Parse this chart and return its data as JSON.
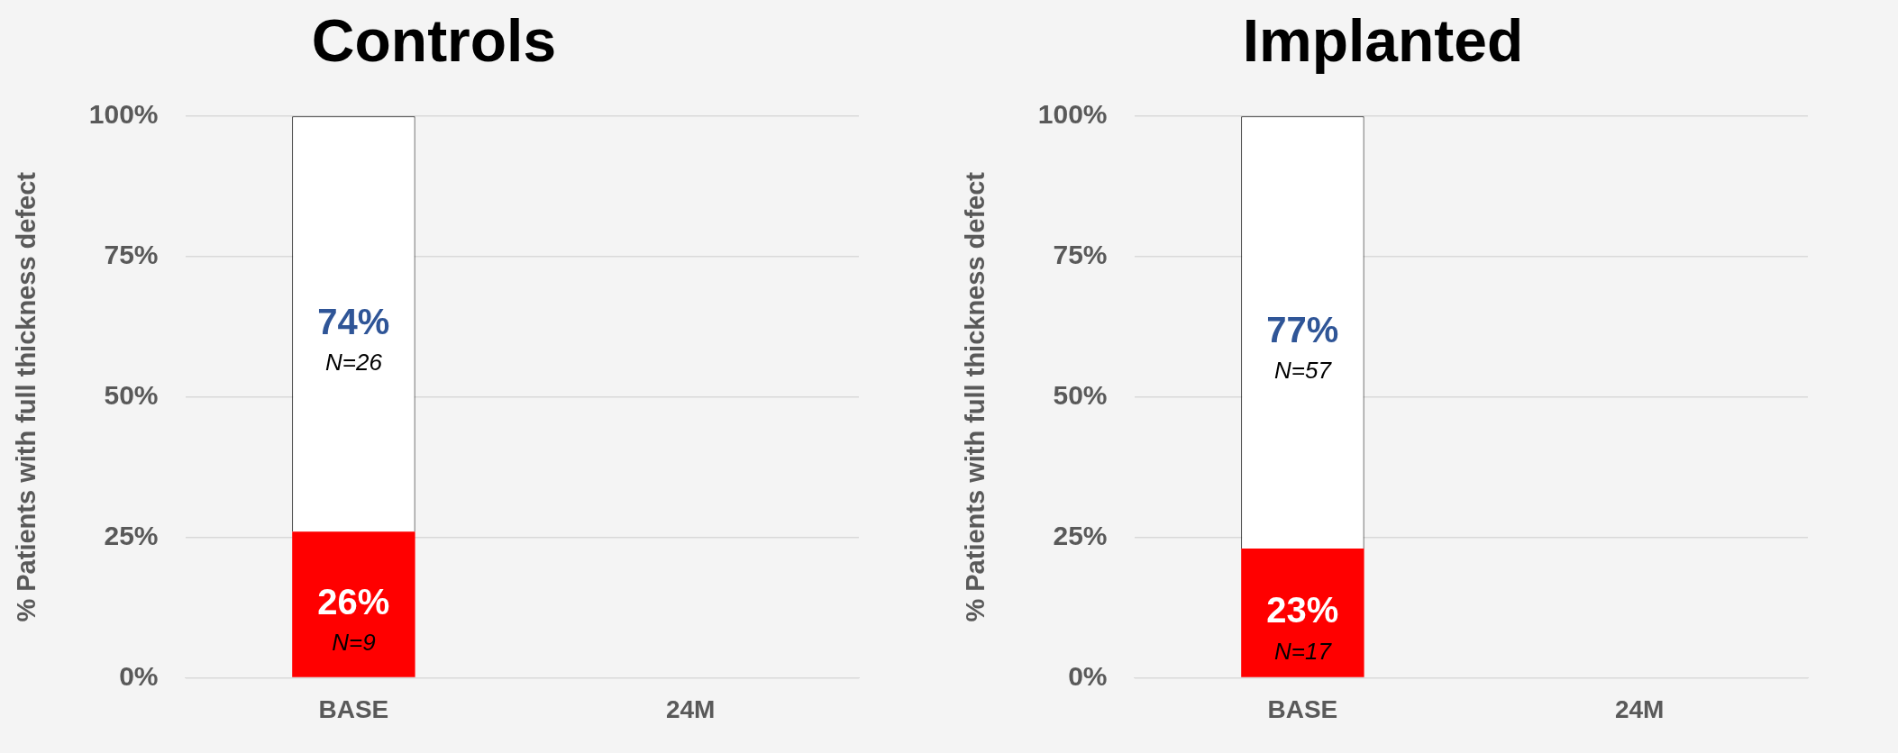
{
  "chart_data": [
    {
      "type": "bar",
      "title": "Controls",
      "ylabel": "% Patients with full thickness defect",
      "categories": [
        "BASE",
        "24M"
      ],
      "stacked": true,
      "grid": "y",
      "legend": false,
      "ylim": [
        0,
        100
      ],
      "yticks": [
        {
          "value": 0,
          "label": "0%"
        },
        {
          "value": 25,
          "label": "25%"
        },
        {
          "value": 50,
          "label": "50%"
        },
        {
          "value": 75,
          "label": "75%"
        },
        {
          "value": 100,
          "label": "100%"
        }
      ],
      "series": [
        {
          "color": "#ff0000",
          "values": [
            26,
            null
          ],
          "value_labels": [
            "26%",
            null
          ]
        },
        {
          "color": "#ffffff",
          "values": [
            74,
            null
          ],
          "value_labels": [
            "74%",
            null
          ]
        }
      ],
      "annotations": [
        "N=9",
        "N=26"
      ]
    },
    {
      "type": "bar",
      "title": "Implanted",
      "ylabel": "% Patients with full thickness defect",
      "categories": [
        "BASE",
        "24M"
      ],
      "stacked": true,
      "grid": "y",
      "legend": false,
      "ylim": [
        0,
        100
      ],
      "yticks": [
        {
          "value": 0,
          "label": "0%"
        },
        {
          "value": 25,
          "label": "25%"
        },
        {
          "value": 50,
          "label": "50%"
        },
        {
          "value": 75,
          "label": "75%"
        },
        {
          "value": 100,
          "label": "100%"
        }
      ],
      "series": [
        {
          "color": "#ff0000",
          "values": [
            23,
            null
          ],
          "value_labels": [
            "23%",
            null
          ]
        },
        {
          "color": "#ffffff",
          "values": [
            77,
            null
          ],
          "value_labels": [
            "77%",
            null
          ]
        }
      ],
      "annotations": [
        "N=17",
        "N=57"
      ]
    }
  ]
}
